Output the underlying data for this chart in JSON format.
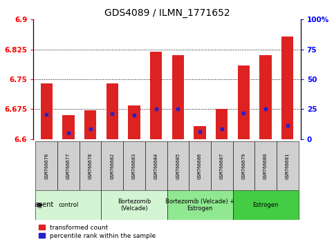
{
  "title": "GDS4089 / ILMN_1771652",
  "samples": [
    "GSM766676",
    "GSM766677",
    "GSM766678",
    "GSM766682",
    "GSM766683",
    "GSM766684",
    "GSM766685",
    "GSM766686",
    "GSM766687",
    "GSM766679",
    "GSM766680",
    "GSM766681"
  ],
  "bar_values": [
    6.74,
    6.66,
    6.673,
    6.74,
    6.684,
    6.82,
    6.81,
    6.632,
    6.675,
    6.785,
    6.81,
    6.858
  ],
  "blue_values": [
    6.662,
    6.615,
    6.625,
    6.663,
    6.661,
    6.676,
    6.675,
    6.618,
    6.625,
    6.665,
    6.675,
    6.635
  ],
  "y_min": 6.6,
  "y_max": 6.9,
  "y_ticks": [
    6.6,
    6.675,
    6.75,
    6.825,
    6.9
  ],
  "y_tick_labels": [
    "6.6",
    "6.675",
    "6.75",
    "6.825",
    "6.9"
  ],
  "right_y_ticks": [
    0,
    25,
    50,
    75,
    100
  ],
  "right_y_tick_labels": [
    "0",
    "25",
    "50",
    "75",
    "100%"
  ],
  "groups": [
    {
      "label": "control",
      "start": 0,
      "end": 3,
      "color": "#d4f5d4"
    },
    {
      "label": "Bortezomib\n(Velcade)",
      "start": 3,
      "end": 6,
      "color": "#d4f5d4"
    },
    {
      "label": "Bortezomib (Velcade) +\nEstrogen",
      "start": 6,
      "end": 9,
      "color": "#90e890"
    },
    {
      "label": "Estrogen",
      "start": 9,
      "end": 12,
      "color": "#44cc44"
    }
  ],
  "bar_color": "#dd2222",
  "blue_color": "#2222cc",
  "bar_width": 0.55,
  "legend_labels": [
    "transformed count",
    "percentile rank within the sample"
  ],
  "legend_colors": [
    "#dd2222",
    "#2222cc"
  ],
  "sample_box_color": "#d0d0d0",
  "agent_label": "agent"
}
